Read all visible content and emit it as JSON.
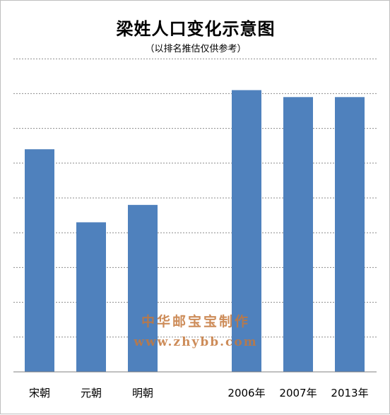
{
  "chart_data": {
    "type": "bar",
    "title": "梁姓人口变化示意图",
    "subtitle": "（以排名推估仅供参考）",
    "categories": [
      "宋朝",
      "元朝",
      "明朝",
      "2006年",
      "2007年",
      "2013年"
    ],
    "values": [
      6.4,
      4.3,
      4.8,
      8.1,
      7.9,
      7.9
    ],
    "ylim": [
      0,
      9
    ],
    "gridlines": true,
    "legend": "none",
    "bar_color": "#4F81BD",
    "grid_color": "#8c8c8c"
  },
  "watermark": {
    "line1": "中华邮宝宝制作",
    "line2": "www.zhybb.com"
  }
}
